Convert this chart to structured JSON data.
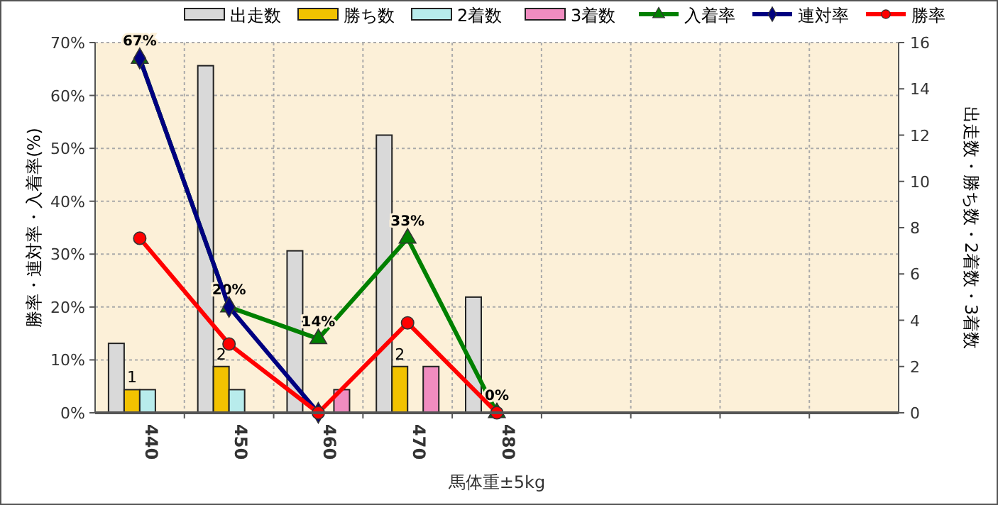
{
  "chart_data": {
    "type": "bar",
    "xlabel": "馬体重±5kg",
    "ylabel": "勝率・連対率・入着率(%)",
    "y2label": "出走数・勝ち数・2着数・3着数",
    "categories": [
      "440",
      "450",
      "460",
      "470",
      "480",
      null,
      null,
      null,
      null
    ],
    "ylim": [
      0,
      70
    ],
    "yticks": [
      {
        "value": 0,
        "label": "0%"
      },
      {
        "value": 10,
        "label": "10%"
      },
      {
        "value": 20,
        "label": "20%"
      },
      {
        "value": 30,
        "label": "30%"
      },
      {
        "value": 40,
        "label": "40%"
      },
      {
        "value": 50,
        "label": "50%"
      },
      {
        "value": 60,
        "label": "60%"
      },
      {
        "value": 70,
        "label": "70%"
      }
    ],
    "y2lim": [
      0,
      16
    ],
    "y2ticks": [
      0,
      2,
      4,
      6,
      8,
      10,
      12,
      14,
      16
    ],
    "grid": true,
    "legend": "top",
    "series": [
      {
        "name": "出走数",
        "axis": "y2",
        "color": "#d9d9d9",
        "values": [
          3,
          15,
          7,
          12,
          5,
          null,
          null,
          null,
          null
        ]
      },
      {
        "name": "勝ち数",
        "axis": "y2",
        "color": "#f2c200",
        "values": [
          1,
          2,
          0,
          2,
          0,
          null,
          null,
          null,
          null
        ],
        "value_labels": [
          "1",
          "2",
          null,
          "2",
          null,
          null,
          null,
          null,
          null
        ]
      },
      {
        "name": "2着数",
        "axis": "y2",
        "color": "#b8ecec",
        "values": [
          1,
          1,
          0,
          0,
          0,
          null,
          null,
          null,
          null
        ]
      },
      {
        "name": "3着数",
        "axis": "y2",
        "color": "#f08cc0",
        "values": [
          0,
          0,
          1,
          2,
          0,
          null,
          null,
          null,
          null
        ]
      },
      {
        "name": "入着率",
        "type": "line",
        "axis": "y",
        "color": "#008000",
        "marker": "triangle",
        "values": [
          67,
          20,
          14,
          33,
          0,
          null,
          null,
          null,
          null
        ],
        "value_labels": [
          "67%",
          "20%",
          "14%",
          "33%",
          "0%",
          null,
          null,
          null,
          null
        ]
      },
      {
        "name": "連対率",
        "type": "line",
        "axis": "y",
        "color": "#000080",
        "marker": "diamond",
        "values": [
          67,
          20,
          0,
          null,
          null,
          null,
          null,
          null,
          null
        ]
      },
      {
        "name": "勝率",
        "type": "line",
        "axis": "y",
        "color": "#ff0000",
        "marker": "circle",
        "values": [
          33,
          13,
          0,
          17,
          0,
          null,
          null,
          null,
          null
        ]
      }
    ]
  }
}
